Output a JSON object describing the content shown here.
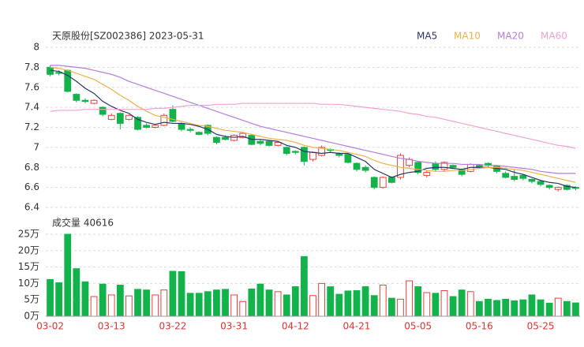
{
  "chart_data": [
    {
      "type": "candlestick",
      "title": "天原股份[SZ002386] 2023-05-31",
      "categories": [
        "03-02",
        null,
        null,
        null,
        null,
        null,
        null,
        "03-13",
        null,
        null,
        null,
        null,
        null,
        null,
        "03-22",
        null,
        null,
        null,
        null,
        null,
        null,
        "03-31",
        null,
        null,
        null,
        null,
        null,
        null,
        "04-12",
        null,
        null,
        null,
        null,
        null,
        null,
        "04-21",
        null,
        null,
        null,
        null,
        null,
        null,
        "05-05",
        null,
        null,
        null,
        null,
        null,
        null,
        "05-16",
        null,
        null,
        null,
        null,
        null,
        null,
        "05-25",
        null,
        null,
        null,
        null
      ],
      "open": [
        7.8,
        7.75,
        7.77,
        7.53,
        7.47,
        7.44,
        7.4,
        7.28,
        7.34,
        7.28,
        7.3,
        7.22,
        7.2,
        7.22,
        7.38,
        7.24,
        7.18,
        7.15,
        7.22,
        7.1,
        7.1,
        7.07,
        7.1,
        7.12,
        7.06,
        7.06,
        7.02,
        7.0,
        6.96,
        7.0,
        6.88,
        6.92,
        6.98,
        6.94,
        6.93,
        6.84,
        6.8,
        6.7,
        6.6,
        6.7,
        6.7,
        6.82,
        6.85,
        6.72,
        6.84,
        6.78,
        6.82,
        6.78,
        6.76,
        6.82,
        6.84,
        6.81,
        6.74,
        6.71,
        6.72,
        6.68,
        6.66,
        6.62,
        6.58,
        6.62,
        6.6
      ],
      "high": [
        7.82,
        7.77,
        7.78,
        7.54,
        7.49,
        7.48,
        7.41,
        7.34,
        7.35,
        7.33,
        7.31,
        7.24,
        7.23,
        7.34,
        7.42,
        7.25,
        7.2,
        7.16,
        7.23,
        7.11,
        7.12,
        7.13,
        7.15,
        7.13,
        7.08,
        7.07,
        7.06,
        7.01,
        6.97,
        7.01,
        6.96,
        7.02,
        6.99,
        6.95,
        6.94,
        6.85,
        6.82,
        6.71,
        6.71,
        6.71,
        6.94,
        6.9,
        6.86,
        6.77,
        6.86,
        6.86,
        6.83,
        6.79,
        6.84,
        6.83,
        6.85,
        6.82,
        6.76,
        6.78,
        6.73,
        6.69,
        6.67,
        6.63,
        6.61,
        6.63,
        6.61
      ],
      "low": [
        7.71,
        7.72,
        7.55,
        7.45,
        7.44,
        7.43,
        7.31,
        7.27,
        7.18,
        7.27,
        7.17,
        7.19,
        7.19,
        7.21,
        7.25,
        7.16,
        7.15,
        7.12,
        7.12,
        7.03,
        7.07,
        7.06,
        7.09,
        7.02,
        7.02,
        7.01,
        7.01,
        6.92,
        6.93,
        6.82,
        6.86,
        6.91,
        6.95,
        6.9,
        6.84,
        6.76,
        6.75,
        6.58,
        6.59,
        6.64,
        6.68,
        6.8,
        6.73,
        6.7,
        6.76,
        6.76,
        6.79,
        6.71,
        6.75,
        6.79,
        6.8,
        6.74,
        6.69,
        6.66,
        6.67,
        6.64,
        6.61,
        6.58,
        6.56,
        6.57,
        6.57
      ],
      "close": [
        7.73,
        7.74,
        7.56,
        7.47,
        7.46,
        7.47,
        7.33,
        7.32,
        7.24,
        7.32,
        7.18,
        7.2,
        7.22,
        7.32,
        7.26,
        7.18,
        7.17,
        7.13,
        7.14,
        7.05,
        7.08,
        7.12,
        7.14,
        7.03,
        7.04,
        7.02,
        7.05,
        6.94,
        6.95,
        6.86,
        6.95,
        7.0,
        6.97,
        6.92,
        6.85,
        6.78,
        6.77,
        6.6,
        6.7,
        6.65,
        6.92,
        6.88,
        6.75,
        6.75,
        6.78,
        6.85,
        6.8,
        6.73,
        6.83,
        6.8,
        6.82,
        6.76,
        6.7,
        6.68,
        6.69,
        6.66,
        6.63,
        6.6,
        6.6,
        6.58,
        6.59
      ],
      "up_color": "#e8413b",
      "down_color": "#12b34b",
      "series": [
        {
          "name": "MA5",
          "color": "#2b3566",
          "values": [
            7.77,
            7.76,
            7.72,
            7.66,
            7.59,
            7.54,
            7.46,
            7.41,
            7.37,
            7.34,
            7.28,
            7.25,
            7.23,
            7.25,
            7.24,
            7.24,
            7.23,
            7.21,
            7.18,
            7.13,
            7.11,
            7.1,
            7.11,
            7.08,
            7.08,
            7.07,
            7.06,
            7.02,
            7.0,
            6.96,
            6.95,
            6.94,
            6.95,
            6.94,
            6.94,
            6.9,
            6.86,
            6.78,
            6.74,
            6.7,
            6.73,
            6.75,
            6.76,
            6.79,
            6.8,
            6.8,
            6.79,
            6.78,
            6.8,
            6.8,
            6.8,
            6.79,
            6.78,
            6.75,
            6.73,
            6.7,
            6.67,
            6.65,
            6.64,
            6.61,
            6.6
          ]
        },
        {
          "name": "MA10",
          "color": "#f2b04c",
          "values": [
            7.8,
            7.79,
            7.77,
            7.74,
            7.71,
            7.68,
            7.63,
            7.58,
            7.52,
            7.47,
            7.41,
            7.36,
            7.32,
            7.3,
            7.28,
            7.26,
            7.24,
            7.22,
            7.21,
            7.19,
            7.17,
            7.16,
            7.15,
            7.13,
            7.11,
            7.09,
            7.08,
            7.07,
            7.05,
            7.02,
            7.0,
            6.99,
            6.98,
            6.97,
            6.95,
            6.93,
            6.91,
            6.87,
            6.84,
            6.82,
            6.8,
            6.79,
            6.78,
            6.77,
            6.76,
            6.76,
            6.77,
            6.77,
            6.78,
            6.79,
            6.8,
            6.8,
            6.79,
            6.78,
            6.77,
            6.75,
            6.73,
            6.71,
            6.69,
            6.67,
            6.65
          ]
        },
        {
          "name": "MA20",
          "color": "#b87ce0",
          "values": [
            7.82,
            7.82,
            7.81,
            7.8,
            7.79,
            7.77,
            7.75,
            7.73,
            7.7,
            7.66,
            7.63,
            7.6,
            7.57,
            7.54,
            7.51,
            7.48,
            7.45,
            7.42,
            7.39,
            7.36,
            7.33,
            7.3,
            7.27,
            7.24,
            7.21,
            7.19,
            7.17,
            7.15,
            7.13,
            7.11,
            7.09,
            7.07,
            7.05,
            7.03,
            7.01,
            6.99,
            6.97,
            6.95,
            6.93,
            6.91,
            6.89,
            6.88,
            6.86,
            6.85,
            6.84,
            6.84,
            6.84,
            6.83,
            6.83,
            6.83,
            6.82,
            6.82,
            6.81,
            6.8,
            6.79,
            6.78,
            6.76,
            6.75,
            6.74,
            6.74,
            6.74
          ]
        },
        {
          "name": "MA60",
          "color": "#f2a2d2",
          "values": [
            7.36,
            7.37,
            7.37,
            7.37,
            7.38,
            7.38,
            7.38,
            7.38,
            7.38,
            7.38,
            7.38,
            7.38,
            7.39,
            7.39,
            7.4,
            7.41,
            7.42,
            7.42,
            7.42,
            7.43,
            7.43,
            7.43,
            7.44,
            7.44,
            7.44,
            7.44,
            7.44,
            7.44,
            7.44,
            7.44,
            7.44,
            7.43,
            7.43,
            7.43,
            7.42,
            7.41,
            7.4,
            7.39,
            7.38,
            7.37,
            7.36,
            7.34,
            7.33,
            7.31,
            7.3,
            7.28,
            7.26,
            7.24,
            7.22,
            7.2,
            7.18,
            7.16,
            7.14,
            7.12,
            7.1,
            7.08,
            7.06,
            7.04,
            7.02,
            7.01,
            6.99
          ]
        }
      ],
      "ylim": [
        6.4,
        8
      ],
      "yticks": [
        6.4,
        6.6,
        6.8,
        7,
        7.2,
        7.4,
        7.6,
        7.8,
        8
      ],
      "grid": true
    },
    {
      "type": "bar",
      "title": "成交量 40616",
      "values": [
        11.2,
        10.2,
        25,
        14.5,
        10.5,
        6,
        9.8,
        6.5,
        9.5,
        6.2,
        8.2,
        8,
        6.5,
        8,
        13.7,
        13.6,
        7,
        7,
        7.5,
        8,
        8.2,
        6.5,
        4.5,
        8.3,
        9.8,
        8,
        7.5,
        6.5,
        9,
        18.2,
        6.3,
        10,
        9,
        6.7,
        7.7,
        7.8,
        9,
        6.3,
        9.5,
        5.5,
        5.2,
        10.8,
        9,
        7.2,
        7,
        7.8,
        6,
        8,
        7.5,
        4.5,
        5.2,
        4.8,
        5.2,
        4.7,
        5,
        6.5,
        5,
        4,
        5.5,
        4.5,
        4.06
      ],
      "ylim": [
        0,
        25
      ],
      "yticks": [
        {
          "value": 0,
          "label": "0万"
        },
        {
          "value": 5,
          "label": "5万"
        },
        {
          "value": 10,
          "label": "10万"
        },
        {
          "value": 15,
          "label": "15万"
        },
        {
          "value": 20,
          "label": "20万"
        },
        {
          "value": 25,
          "label": "25万"
        }
      ],
      "grid": true
    }
  ]
}
